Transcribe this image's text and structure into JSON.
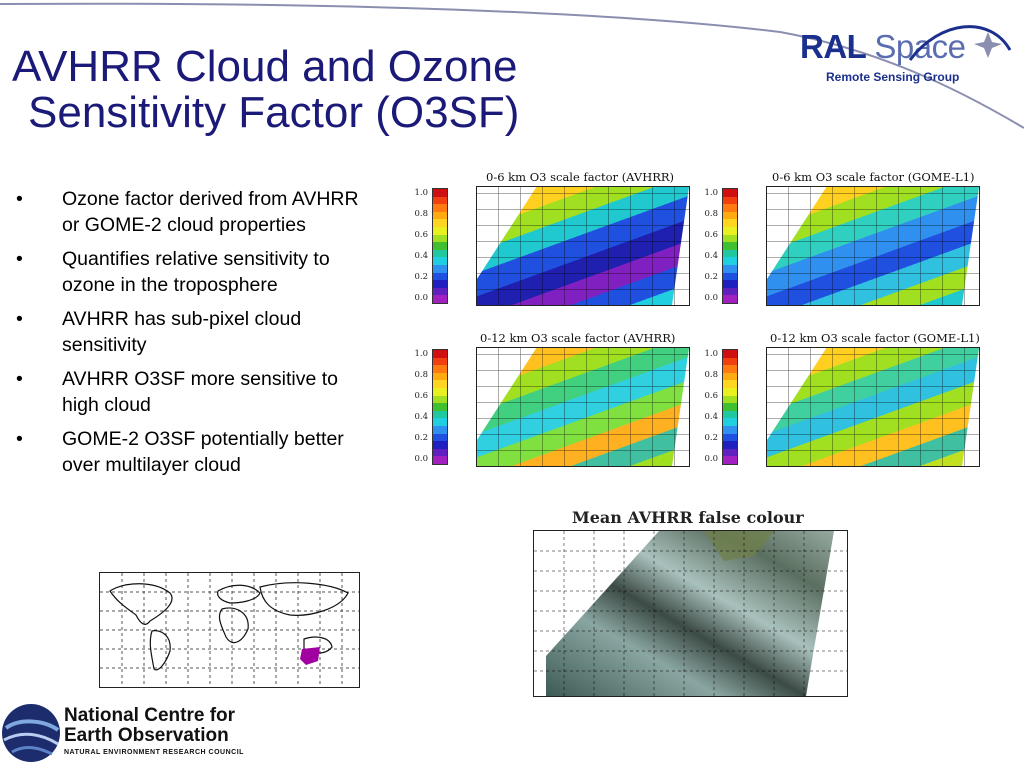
{
  "title": {
    "line1": "AVHRR Cloud and Ozone",
    "line2": "Sensitivity Factor (O3SF)"
  },
  "logo": {
    "brand_bold": "RAL",
    "brand_light": "Space",
    "subtitle": "Remote Sensing Group"
  },
  "bullets": [
    "Ozone factor derived from AVHRR or GOME-2 cloud properties",
    "Quantifies relative sensitivity to ozone in the troposphere",
    "AVHRR has sub-pixel cloud sensitivity",
    "AVHRR O3SF more sensitive to high cloud",
    "GOME-2 O3SF potentially better over multilayer cloud"
  ],
  "panels": [
    {
      "title": "0-6 km O3 scale factor (AVHRR)"
    },
    {
      "title": "0-6 km O3 scale factor (GOME-L1)"
    },
    {
      "title": "0-12 km O3 scale factor (AVHRR)"
    },
    {
      "title": "0-12 km O3 scale factor (GOME-L1)"
    }
  ],
  "colorbar_ticks": [
    "1.0",
    "0.8",
    "0.6",
    "0.4",
    "0.2",
    "0.0"
  ],
  "colorbar_colors": [
    "#d01010",
    "#f04010",
    "#ff7a10",
    "#ffaa10",
    "#ffd520",
    "#e8f020",
    "#a0e020",
    "#40c030",
    "#20c8a0",
    "#20d0e0",
    "#3090f0",
    "#2050e0",
    "#2020c0",
    "#6020c0",
    "#a020c0"
  ],
  "false_colour_title": "Mean AVHRR false colour",
  "org": {
    "line1": "National Centre for",
    "line2": "Earth Observation",
    "line3": "NATURAL ENVIRONMENT RESEARCH COUNCIL"
  },
  "colors": {
    "title": "#1b1a78",
    "logo": "#1b2f8c",
    "region_marker": "#a000a0"
  }
}
